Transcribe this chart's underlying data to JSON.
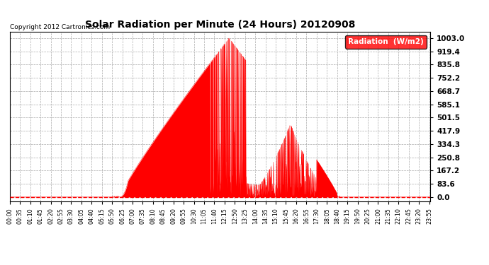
{
  "title": "Solar Radiation per Minute (24 Hours) 20120908",
  "copyright": "Copyright 2012 Cartronics.com",
  "legend_label": "Radiation  (W/m2)",
  "y_ticks": [
    0.0,
    83.6,
    167.2,
    250.8,
    334.3,
    417.9,
    501.5,
    585.1,
    668.7,
    752.2,
    835.8,
    919.4,
    1003.0
  ],
  "y_max": 1003.0,
  "fill_color": "#FF0000",
  "background_color": "#FFFFFF",
  "grid_color": "#AAAAAA",
  "zero_line_color": "#FF0000",
  "total_minutes": 1440,
  "sunrise_minute": 375,
  "sunset_minute": 1125,
  "peak_minute": 750,
  "peak_value": 1003.0,
  "x_tick_interval_minutes": 35
}
